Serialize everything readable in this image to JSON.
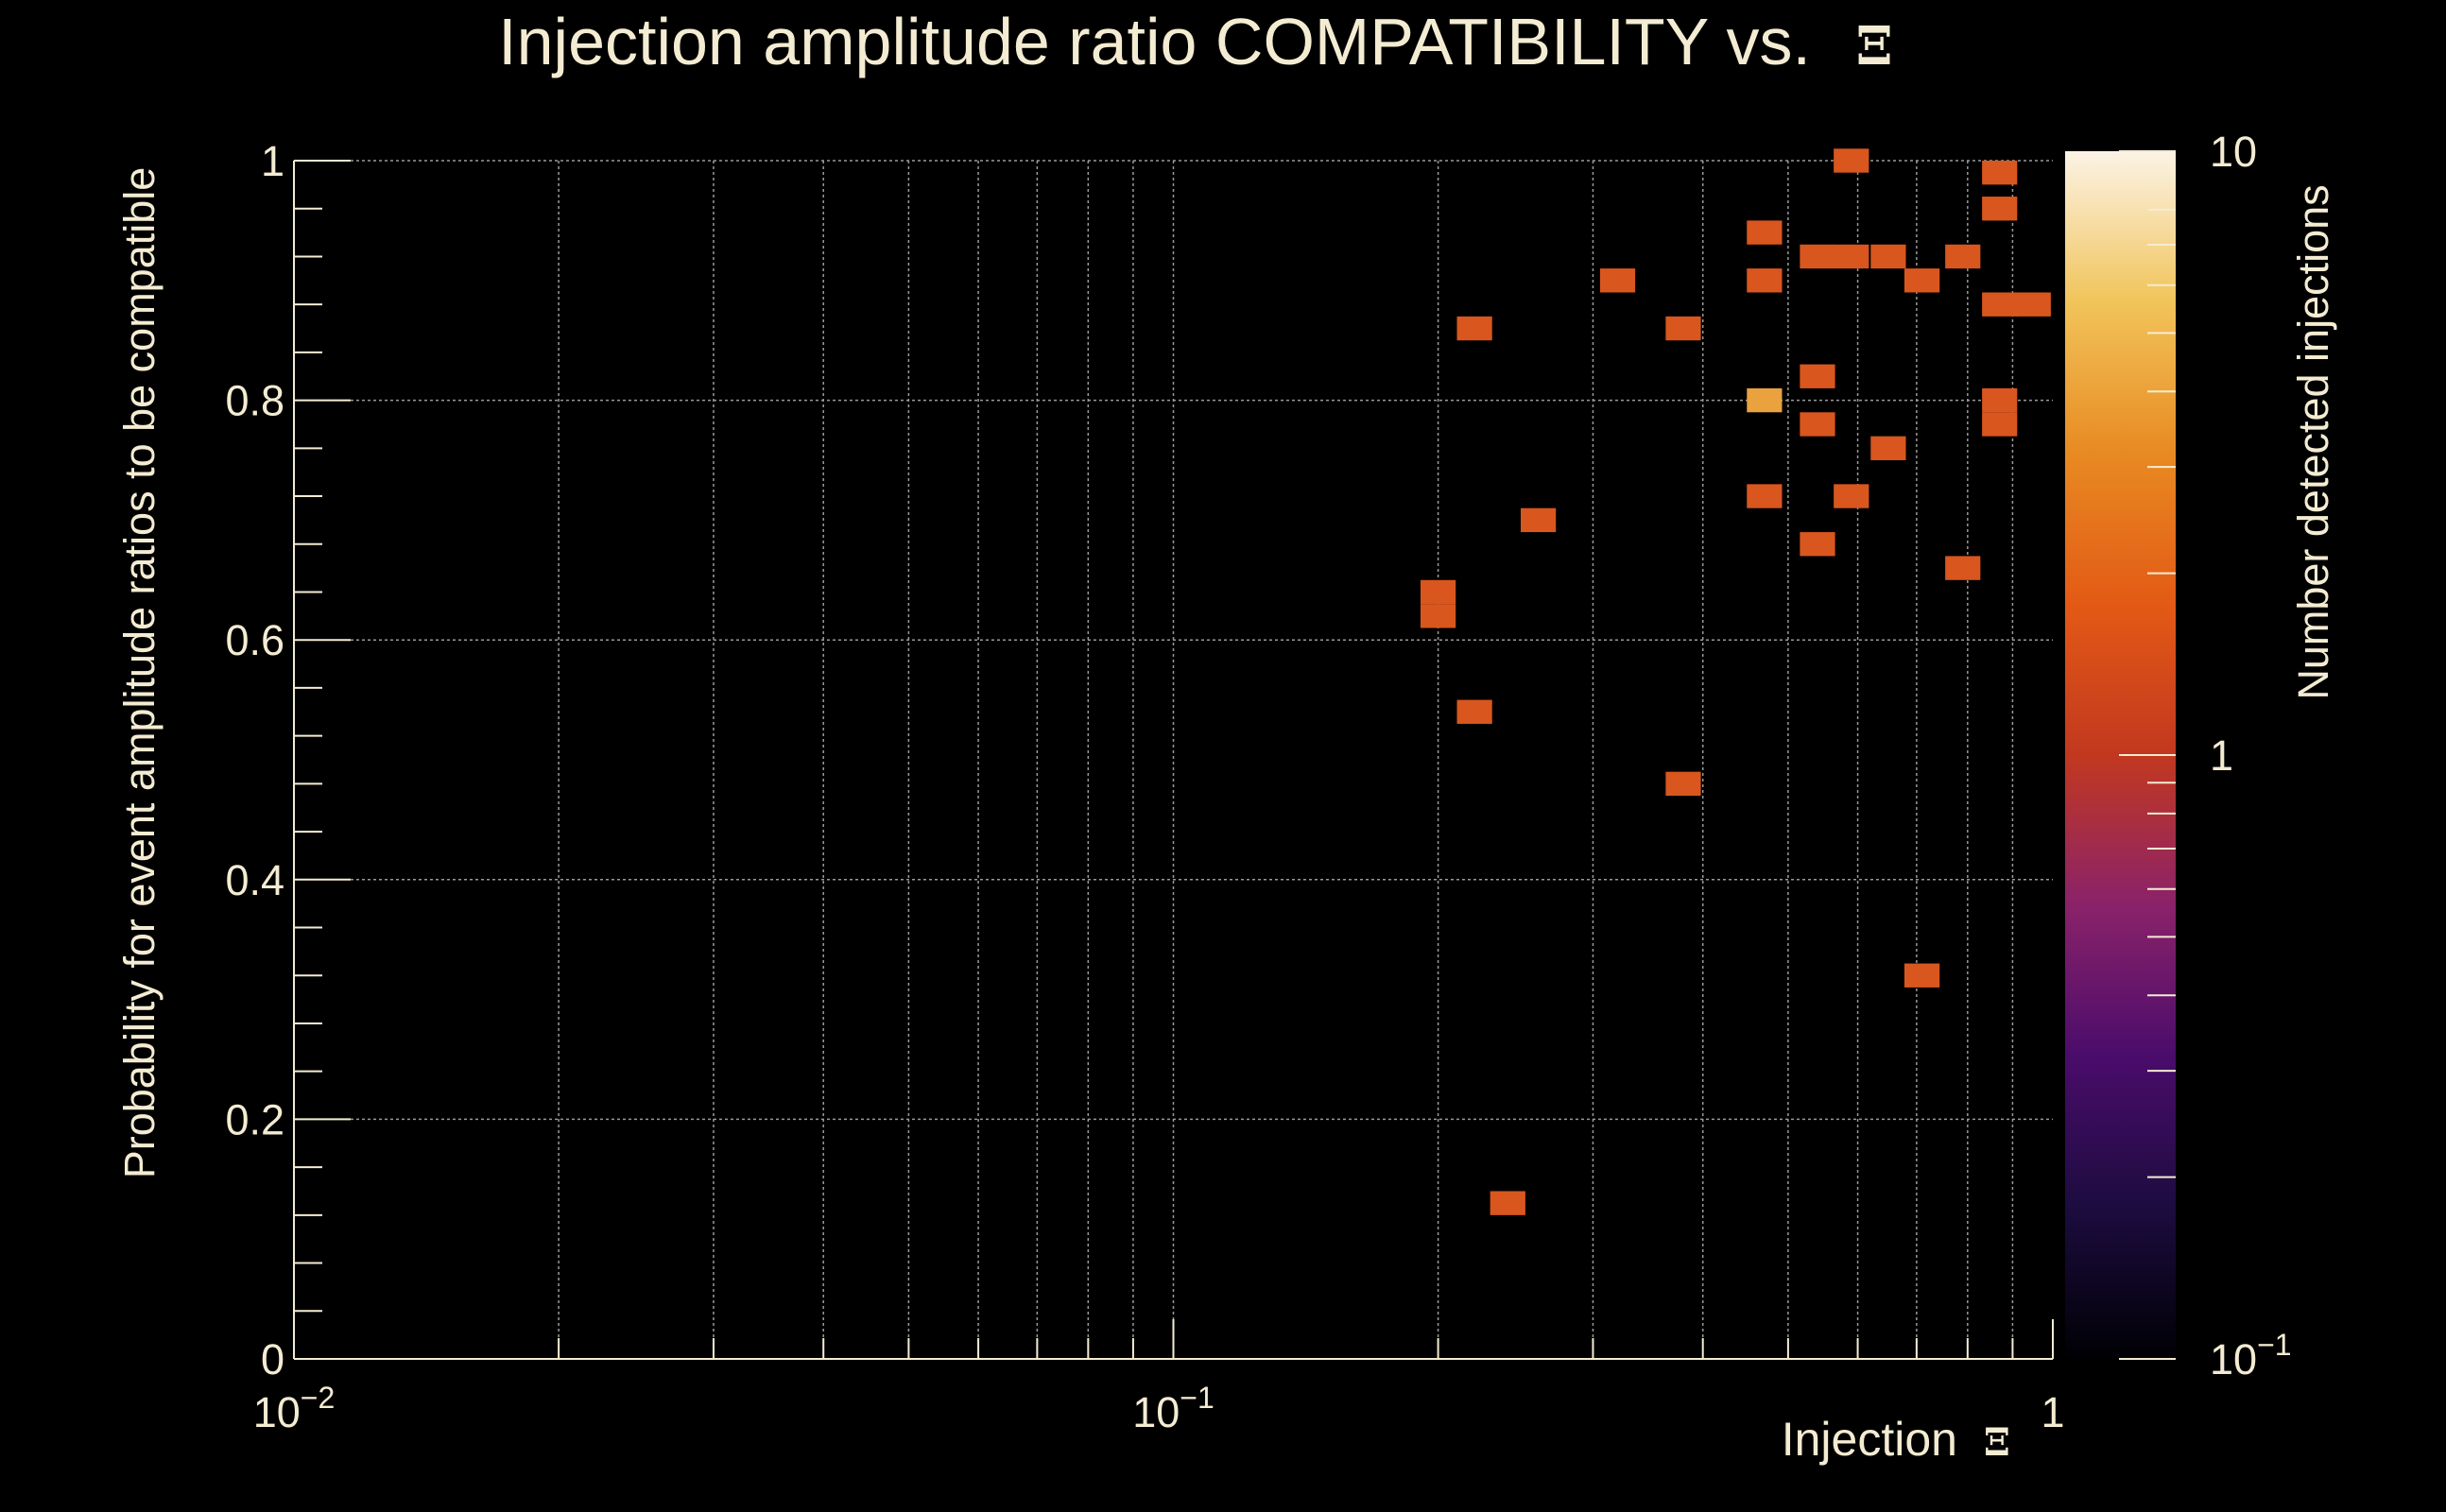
{
  "colors": {
    "background": "#000000",
    "text": "#f4ecd2",
    "grid": "#9a9a9a",
    "cell": "#d9561e",
    "cell_high": "#e9a23e",
    "colorscale": [
      "#000004",
      "#1c0c3f",
      "#4a0c6b",
      "#8a226a",
      "#c2381f",
      "#e35a16",
      "#e88a22",
      "#f1c45a",
      "#fcf3e6"
    ]
  },
  "chart_data": {
    "type": "heatmap",
    "title": "Injection amplitude ratio COMPATIBILITY vs.",
    "title_symbol": "Ξ",
    "xlabel": "Injection",
    "xlabel_symbol": "Ξ",
    "ylabel": "Probability for event amplitude ratios to be compatible",
    "zlabel": "Number detected injections",
    "x_scale": "log",
    "xlim": [
      0.01,
      1
    ],
    "ylim": [
      0,
      1
    ],
    "zlim": [
      0.1,
      10
    ],
    "z_scale": "log",
    "grid": true,
    "x_ticks": [
      {
        "value": 0.01,
        "base": "10",
        "exp": "−2"
      },
      {
        "value": 0.1,
        "base": "10",
        "exp": "−1"
      },
      {
        "value": 1,
        "base": "1",
        "exp": ""
      }
    ],
    "y_ticks": [
      "0",
      "0.2",
      "0.4",
      "0.6",
      "0.8",
      "1"
    ],
    "z_ticks": [
      {
        "value": 0.1,
        "base": "10",
        "exp": "−1"
      },
      {
        "value": 1,
        "base": "1",
        "exp": ""
      },
      {
        "value": 10,
        "base": "10",
        "exp": ""
      }
    ],
    "cell_width_log": 0.04,
    "cell_height": 0.02,
    "cells": [
      {
        "x": 0.59,
        "y": 1.0,
        "count": 1
      },
      {
        "x": 0.87,
        "y": 0.99,
        "count": 1
      },
      {
        "x": 0.87,
        "y": 0.96,
        "count": 1
      },
      {
        "x": 0.47,
        "y": 0.94,
        "count": 1
      },
      {
        "x": 0.54,
        "y": 0.92,
        "count": 1
      },
      {
        "x": 0.59,
        "y": 0.92,
        "count": 1
      },
      {
        "x": 0.65,
        "y": 0.92,
        "count": 1
      },
      {
        "x": 0.79,
        "y": 0.92,
        "count": 1
      },
      {
        "x": 0.32,
        "y": 0.9,
        "count": 1
      },
      {
        "x": 0.47,
        "y": 0.9,
        "count": 1
      },
      {
        "x": 0.71,
        "y": 0.9,
        "count": 1
      },
      {
        "x": 0.87,
        "y": 0.88,
        "count": 1
      },
      {
        "x": 0.95,
        "y": 0.88,
        "count": 1
      },
      {
        "x": 0.22,
        "y": 0.86,
        "count": 1
      },
      {
        "x": 0.38,
        "y": 0.86,
        "count": 1
      },
      {
        "x": 0.54,
        "y": 0.82,
        "count": 1
      },
      {
        "x": 0.47,
        "y": 0.8,
        "count": 3
      },
      {
        "x": 0.87,
        "y": 0.8,
        "count": 1
      },
      {
        "x": 0.87,
        "y": 0.78,
        "count": 1
      },
      {
        "x": 0.54,
        "y": 0.78,
        "count": 1
      },
      {
        "x": 0.65,
        "y": 0.76,
        "count": 1
      },
      {
        "x": 0.47,
        "y": 0.72,
        "count": 1
      },
      {
        "x": 0.59,
        "y": 0.72,
        "count": 1
      },
      {
        "x": 0.26,
        "y": 0.7,
        "count": 1
      },
      {
        "x": 0.54,
        "y": 0.68,
        "count": 1
      },
      {
        "x": 0.79,
        "y": 0.66,
        "count": 1
      },
      {
        "x": 0.2,
        "y": 0.64,
        "count": 1
      },
      {
        "x": 0.2,
        "y": 0.62,
        "count": 1
      },
      {
        "x": 0.22,
        "y": 0.54,
        "count": 1
      },
      {
        "x": 0.38,
        "y": 0.48,
        "count": 1
      },
      {
        "x": 0.71,
        "y": 0.32,
        "count": 1
      },
      {
        "x": 0.24,
        "y": 0.13,
        "count": 1
      }
    ]
  }
}
